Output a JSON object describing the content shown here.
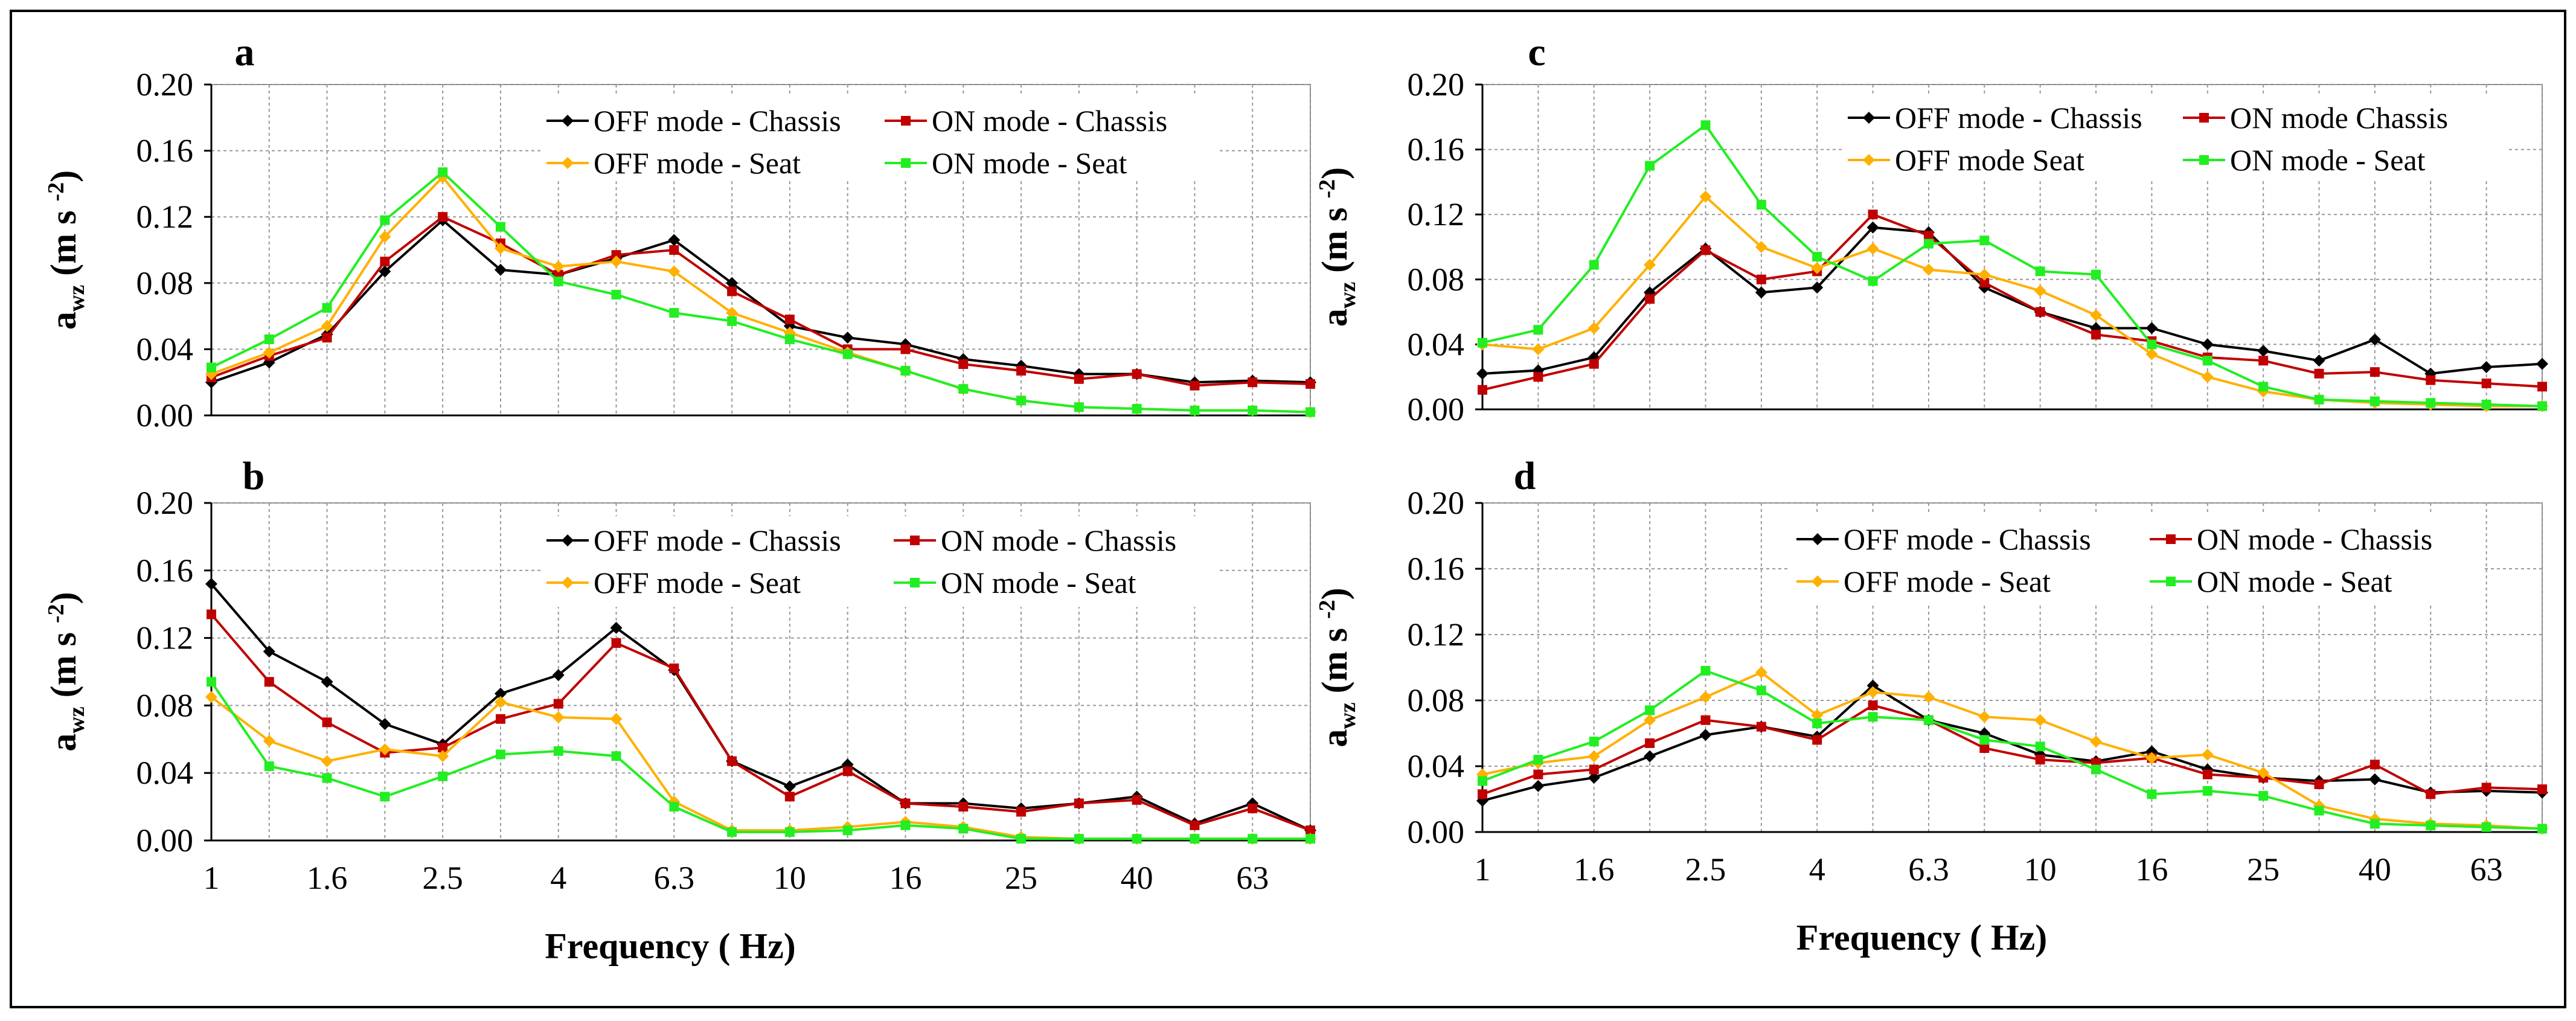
{
  "colors": {
    "off_chassis": "#000000",
    "on_chassis": "#c00000",
    "off_seat": "#ffb000",
    "on_seat": "#22ee22",
    "grid": "#999999",
    "frame": "#000000"
  },
  "x_tick_labels": [
    "1",
    "1.6",
    "2.5",
    "4",
    "6.3",
    "10",
    "16",
    "25",
    "40",
    "63"
  ],
  "y_tick_labels": [
    "0.00",
    "0.04",
    "0.08",
    "0.12",
    "0.16",
    "0.20"
  ],
  "ylabel": {
    "main": "a",
    "sub": "wz",
    "unit": "(m s",
    "sup": "-2",
    "close": ")"
  },
  "xlabel": "Frequency ( Hz)",
  "chart_data": [
    {
      "panel": "a",
      "type": "line",
      "xlabel": "",
      "ylabel": "awz (m s-2)",
      "ylim": [
        0,
        0.2
      ],
      "grid": true,
      "legend_position": "top-right",
      "x": [
        1,
        1.25,
        1.6,
        2,
        2.5,
        3.15,
        4,
        5,
        6.3,
        8,
        10,
        12.5,
        16,
        20,
        25,
        31.5,
        40,
        50,
        63,
        80
      ],
      "series": [
        {
          "name": "OFF mode - Chassis",
          "key": "off_chassis",
          "marker": "diamond",
          "values": [
            0.02,
            0.032,
            0.049,
            0.087,
            0.118,
            0.088,
            0.085,
            0.095,
            0.106,
            0.08,
            0.054,
            0.047,
            0.043,
            0.034,
            0.03,
            0.025,
            0.025,
            0.02,
            0.021,
            0.02
          ]
        },
        {
          "name": "ON mode - Chassis",
          "key": "on_chassis",
          "marker": "square",
          "values": [
            0.023,
            0.036,
            0.047,
            0.093,
            0.12,
            0.104,
            0.085,
            0.097,
            0.1,
            0.075,
            0.058,
            0.04,
            0.04,
            0.031,
            0.027,
            0.022,
            0.025,
            0.018,
            0.02,
            0.019
          ]
        },
        {
          "name": "OFF mode - Seat",
          "key": "off_seat",
          "marker": "diamond",
          "values": [
            0.025,
            0.038,
            0.054,
            0.108,
            0.144,
            0.101,
            0.09,
            0.093,
            0.087,
            0.062,
            0.05,
            0.038,
            0.027,
            0.016,
            0.009,
            0.005,
            0.004,
            0.003,
            0.003,
            0.002
          ]
        },
        {
          "name": "ON mode - Seat",
          "key": "on_seat",
          "marker": "square",
          "values": [
            0.029,
            0.046,
            0.065,
            0.118,
            0.147,
            0.114,
            0.081,
            0.073,
            0.062,
            0.057,
            0.046,
            0.037,
            0.027,
            0.016,
            0.009,
            0.005,
            0.004,
            0.003,
            0.003,
            0.002
          ]
        }
      ]
    },
    {
      "panel": "b",
      "type": "line",
      "xlabel": "Frequency ( Hz)",
      "ylabel": "awz (m s-2)",
      "ylim": [
        0,
        0.2
      ],
      "grid": true,
      "legend_position": "top-right",
      "x": [
        1,
        1.25,
        1.6,
        2,
        2.5,
        3.15,
        4,
        5,
        6.3,
        8,
        10,
        12.5,
        16,
        20,
        25,
        31.5,
        40,
        50,
        63,
        80
      ],
      "series": [
        {
          "name": "OFF mode - Chassis",
          "key": "off_chassis",
          "marker": "diamond",
          "values": [
            0.152,
            0.112,
            0.094,
            0.069,
            0.057,
            0.087,
            0.098,
            0.126,
            0.101,
            0.047,
            0.032,
            0.045,
            0.022,
            0.022,
            0.019,
            0.022,
            0.026,
            0.01,
            0.022,
            0.006
          ]
        },
        {
          "name": "ON mode - Chassis",
          "key": "on_chassis",
          "marker": "square",
          "values": [
            0.134,
            0.094,
            0.07,
            0.052,
            0.055,
            0.072,
            0.081,
            0.117,
            0.102,
            0.047,
            0.026,
            0.041,
            0.022,
            0.02,
            0.017,
            0.022,
            0.024,
            0.009,
            0.019,
            0.006
          ]
        },
        {
          "name": "OFF mode - Seat",
          "key": "off_seat",
          "marker": "diamond",
          "values": [
            0.085,
            0.059,
            0.047,
            0.054,
            0.05,
            0.082,
            0.073,
            0.072,
            0.023,
            0.006,
            0.006,
            0.008,
            0.011,
            0.008,
            0.002,
            0.001,
            0.001,
            0.001,
            0.001,
            0.001
          ]
        },
        {
          "name": "ON mode - Seat",
          "key": "on_seat",
          "marker": "square",
          "values": [
            0.094,
            0.044,
            0.037,
            0.026,
            0.038,
            0.051,
            0.053,
            0.05,
            0.02,
            0.005,
            0.005,
            0.006,
            0.009,
            0.007,
            0.001,
            0.001,
            0.001,
            0.001,
            0.001,
            0.001
          ]
        }
      ]
    },
    {
      "panel": "c",
      "type": "line",
      "xlabel": "",
      "ylabel": "awz (m s-2)",
      "ylim": [
        0,
        0.2
      ],
      "grid": true,
      "legend_position": "top-right",
      "x": [
        1,
        1.25,
        1.6,
        2,
        2.5,
        3.15,
        4,
        5,
        6.3,
        8,
        10,
        12.5,
        16,
        20,
        25,
        31.5,
        40,
        50,
        63,
        80
      ],
      "series": [
        {
          "name": "OFF mode - Chassis",
          "key": "off_chassis",
          "marker": "diamond",
          "values": [
            0.022,
            0.024,
            0.032,
            0.072,
            0.099,
            0.072,
            0.075,
            0.112,
            0.109,
            0.075,
            0.06,
            0.05,
            0.05,
            0.04,
            0.036,
            0.03,
            0.043,
            0.022,
            0.026,
            0.028
          ]
        },
        {
          "name": "ON mode Chassis",
          "key": "on_chassis",
          "marker": "square",
          "values": [
            0.012,
            0.02,
            0.028,
            0.068,
            0.098,
            0.08,
            0.085,
            0.12,
            0.107,
            0.078,
            0.06,
            0.046,
            0.042,
            0.032,
            0.03,
            0.022,
            0.023,
            0.018,
            0.016,
            0.014
          ]
        },
        {
          "name": "OFF mode Seat",
          "key": "off_seat",
          "marker": "diamond",
          "values": [
            0.04,
            0.037,
            0.05,
            0.089,
            0.131,
            0.1,
            0.087,
            0.099,
            0.086,
            0.083,
            0.073,
            0.058,
            0.034,
            0.02,
            0.011,
            0.006,
            0.004,
            0.003,
            0.002,
            0.002
          ]
        },
        {
          "name": "ON mode - Seat",
          "key": "on_seat",
          "marker": "square",
          "values": [
            0.041,
            0.049,
            0.089,
            0.15,
            0.175,
            0.126,
            0.094,
            0.079,
            0.102,
            0.104,
            0.085,
            0.083,
            0.04,
            0.03,
            0.014,
            0.006,
            0.005,
            0.004,
            0.003,
            0.002
          ]
        }
      ]
    },
    {
      "panel": "d",
      "type": "line",
      "xlabel": "Frequency ( Hz)",
      "ylabel": "awz (m s-2)",
      "ylim": [
        0,
        0.2
      ],
      "grid": true,
      "legend_position": "top-right",
      "x": [
        1,
        1.25,
        1.6,
        2,
        2.5,
        3.15,
        4,
        5,
        6.3,
        8,
        10,
        12.5,
        16,
        20,
        25,
        31.5,
        40,
        50,
        63,
        80
      ],
      "series": [
        {
          "name": "OFF mode - Chassis",
          "key": "off_chassis",
          "marker": "diamond",
          "values": [
            0.019,
            0.028,
            0.033,
            0.046,
            0.059,
            0.064,
            0.058,
            0.089,
            0.068,
            0.06,
            0.047,
            0.043,
            0.049,
            0.038,
            0.033,
            0.031,
            0.032,
            0.024,
            0.025,
            0.024
          ]
        },
        {
          "name": "ON mode - Chassis",
          "key": "on_chassis",
          "marker": "square",
          "values": [
            0.023,
            0.035,
            0.038,
            0.054,
            0.068,
            0.064,
            0.056,
            0.077,
            0.068,
            0.051,
            0.044,
            0.042,
            0.045,
            0.035,
            0.033,
            0.029,
            0.041,
            0.023,
            0.027,
            0.026
          ]
        },
        {
          "name": "OFF mode - Seat",
          "key": "off_seat",
          "marker": "diamond",
          "values": [
            0.035,
            0.042,
            0.046,
            0.068,
            0.082,
            0.097,
            0.071,
            0.085,
            0.082,
            0.07,
            0.068,
            0.055,
            0.045,
            0.047,
            0.036,
            0.016,
            0.008,
            0.005,
            0.004,
            0.002
          ]
        },
        {
          "name": "ON mode - Seat",
          "key": "on_seat",
          "marker": "square",
          "values": [
            0.031,
            0.044,
            0.055,
            0.074,
            0.098,
            0.086,
            0.066,
            0.07,
            0.068,
            0.056,
            0.052,
            0.038,
            0.023,
            0.025,
            0.022,
            0.013,
            0.005,
            0.004,
            0.003,
            0.002
          ]
        }
      ]
    }
  ]
}
